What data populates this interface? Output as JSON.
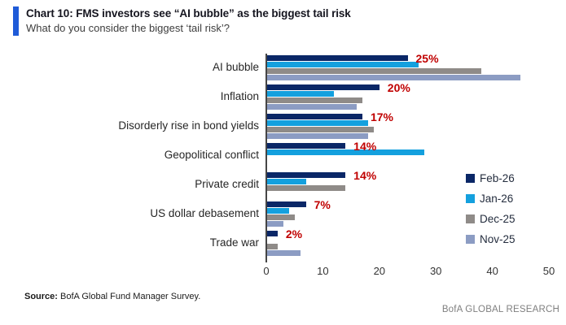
{
  "header": {
    "title": "Chart 10: FMS investors see “AI bubble” as the biggest tail risk",
    "subtitle": "What do you consider the biggest ‘tail risk’?"
  },
  "chart_data": {
    "type": "bar",
    "orientation": "horizontal",
    "title": "Chart 10: FMS investors see “AI bubble” as the biggest tail risk",
    "subtitle": "What do you consider the biggest ‘tail risk’?",
    "categories": [
      "AI bubble",
      "Inflation",
      "Disorderly rise in bond yields",
      "Geopolitical conflict",
      "Private credit",
      "US dollar debasement",
      "Trade war"
    ],
    "series": [
      {
        "name": "Feb-26",
        "color": "#0a2767",
        "values": [
          25,
          20,
          17,
          14,
          14,
          7,
          2
        ]
      },
      {
        "name": "Jan-26",
        "color": "#14a0de",
        "values": [
          27,
          12,
          18,
          28,
          7,
          4,
          0
        ]
      },
      {
        "name": "Dec-25",
        "color": "#8f8b88",
        "values": [
          38,
          17,
          19,
          0,
          14,
          5,
          2
        ]
      },
      {
        "name": "Nov-25",
        "color": "#8c9cc3",
        "values": [
          45,
          16,
          18,
          0,
          0,
          3,
          6
        ]
      }
    ],
    "data_labels": [
      "25%",
      "20%",
      "17%",
      "14%",
      "14%",
      "7%",
      "2%"
    ],
    "data_label_color": "#c00000",
    "x_ticks": [
      0,
      10,
      20,
      30,
      40,
      50
    ],
    "xlim": [
      0,
      50
    ],
    "grid": false,
    "legend_position": "right"
  },
  "footer": {
    "source_label": "Source:",
    "source": "BofA Global Fund Manager Survey.",
    "branding": "BofA GLOBAL RESEARCH"
  }
}
